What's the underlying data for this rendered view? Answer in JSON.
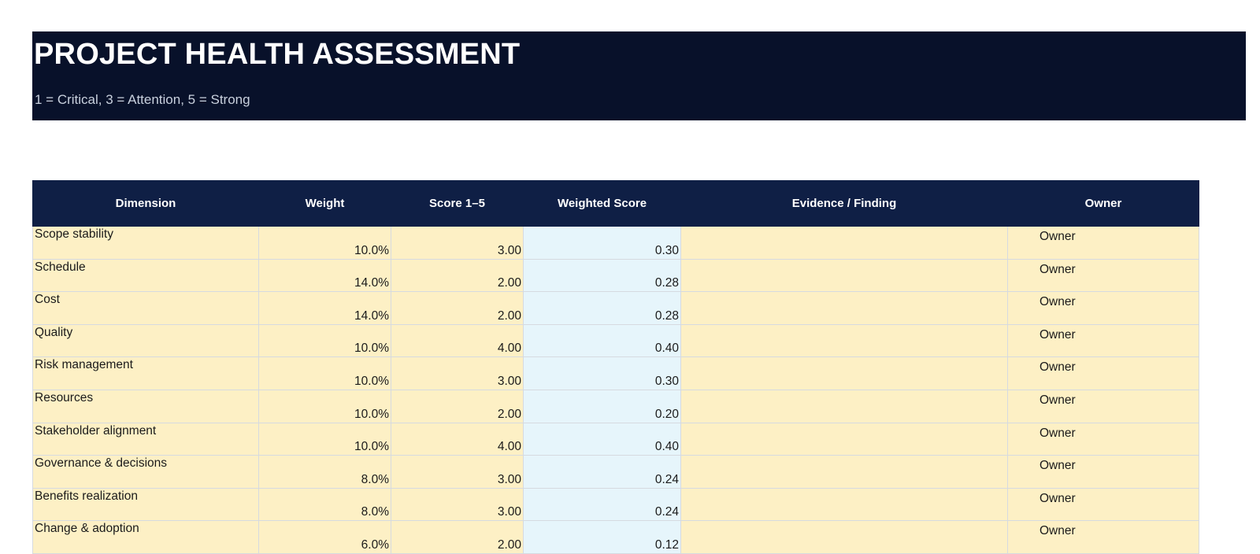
{
  "header": {
    "title": "PROJECT HEALTH ASSESSMENT",
    "subtitle": "1 = Critical, 3 = Attention, 5 = Strong"
  },
  "table": {
    "columns": [
      "Dimension",
      "Weight",
      "Score 1–5",
      "Weighted Score",
      "Evidence / Finding",
      "Owner"
    ],
    "rows": [
      {
        "dimension": "Scope stability",
        "weight": "10.0%",
        "score": "3.00",
        "weighted": "0.30",
        "evidence": "",
        "owner": "Owner"
      },
      {
        "dimension": "Schedule",
        "weight": "14.0%",
        "score": "2.00",
        "weighted": "0.28",
        "evidence": "",
        "owner": "Owner"
      },
      {
        "dimension": "Cost",
        "weight": "14.0%",
        "score": "2.00",
        "weighted": "0.28",
        "evidence": "",
        "owner": "Owner"
      },
      {
        "dimension": "Quality",
        "weight": "10.0%",
        "score": "4.00",
        "weighted": "0.40",
        "evidence": "",
        "owner": "Owner"
      },
      {
        "dimension": "Risk management",
        "weight": "10.0%",
        "score": "3.00",
        "weighted": "0.30",
        "evidence": "",
        "owner": "Owner"
      },
      {
        "dimension": "Resources",
        "weight": "10.0%",
        "score": "2.00",
        "weighted": "0.20",
        "evidence": "",
        "owner": "Owner"
      },
      {
        "dimension": "Stakeholder alignment",
        "weight": "10.0%",
        "score": "4.00",
        "weighted": "0.40",
        "evidence": "",
        "owner": "Owner"
      },
      {
        "dimension": "Governance & decisions",
        "weight": "8.0%",
        "score": "3.00",
        "weighted": "0.24",
        "evidence": "",
        "owner": "Owner"
      },
      {
        "dimension": "Benefits realization",
        "weight": "8.0%",
        "score": "3.00",
        "weighted": "0.24",
        "evidence": "",
        "owner": "Owner"
      },
      {
        "dimension": "Change & adoption",
        "weight": "6.0%",
        "score": "2.00",
        "weighted": "0.12",
        "evidence": "",
        "owner": "Owner"
      }
    ]
  },
  "colors": {
    "banner_bg": "#08112a",
    "header_bg": "#0f1f45",
    "input_cell_bg": "#fdf0c5",
    "computed_cell_bg": "#e6f5fb"
  }
}
